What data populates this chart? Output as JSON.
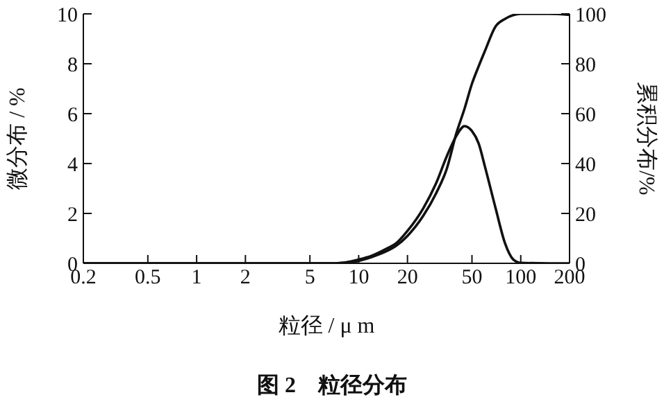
{
  "chart_data": {
    "type": "line",
    "title": "图 2　粒径分布",
    "xlabel": "粒径 / μ m",
    "ylabel": "微分布 / %",
    "y2label": "累积分布/%",
    "x": [
      0.2,
      0.5,
      1,
      2,
      5,
      7,
      8,
      10,
      12,
      15,
      17,
      20,
      25,
      30,
      35,
      40,
      45,
      50,
      55,
      60,
      70,
      80,
      90,
      100,
      150,
      200
    ],
    "series": [
      {
        "color": "#111111",
        "values": [
          0,
          0,
          0,
          0,
          0,
          0,
          0.02,
          0.15,
          0.3,
          0.6,
          0.8,
          1.3,
          2.2,
          3.2,
          4.3,
          5.1,
          5.5,
          5.3,
          4.8,
          3.9,
          2.2,
          0.8,
          0.15,
          0.02,
          0,
          0
        ]
      },
      {
        "color": "#111111",
        "axis": "y2",
        "values": [
          0,
          0,
          0,
          0,
          0,
          0,
          0.2,
          1,
          2.5,
          5,
          7,
          11,
          19,
          28,
          38,
          52,
          62,
          72,
          79,
          85,
          95,
          98,
          99.5,
          100,
          100,
          99.6
        ]
      }
    ],
    "xlim": [
      0.2,
      200
    ],
    "xticks": [
      0.2,
      0.5,
      1,
      2,
      5,
      10,
      20,
      50,
      100,
      200
    ],
    "log": "x",
    "ylim": [
      0,
      10
    ],
    "yticks": [
      0,
      2,
      4,
      6,
      8,
      10
    ],
    "y2lim": [
      0,
      100
    ],
    "y2ticks": [
      0,
      20,
      40,
      60,
      80,
      100
    ],
    "grid": false,
    "legend": false,
    "marker": "none",
    "line_style": "solid"
  }
}
